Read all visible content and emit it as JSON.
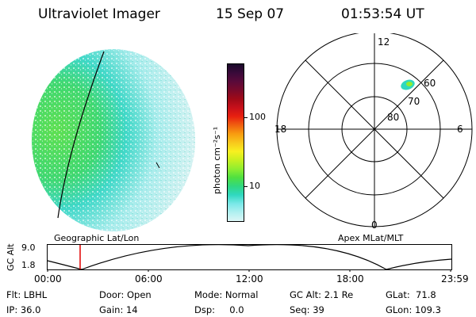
{
  "header": {
    "title": "Ultraviolet Imager",
    "date": "15 Sep 07",
    "time": "01:53:54 UT"
  },
  "colorbar": {
    "unit_label": "photon cm⁻²s⁻¹",
    "ticks": [
      "100",
      "10"
    ],
    "colors": [
      "#1a0a2a",
      "#3a0a3a",
      "#5a0a3a",
      "#7a0a2a",
      "#a00a18",
      "#c8101a",
      "#e82010",
      "#f06010",
      "#f89c10",
      "#f8c81c",
      "#f8f020",
      "#c8f020",
      "#90ee30",
      "#50e040",
      "#30d880",
      "#30d8c0",
      "#7ae8e8",
      "#b0f0f0",
      "#dcf6f6"
    ]
  },
  "disk_image": {
    "label": "Geographic Lat/Lon"
  },
  "polar_plot": {
    "label": "Apex MLat/MLT",
    "mlt_labels": {
      "top": "12",
      "left": "18",
      "right": "6",
      "bottom": "0"
    },
    "lat_labels": [
      "60",
      "70",
      "80"
    ]
  },
  "altitude_plot": {
    "ylabel": "GC Alt",
    "yticks": [
      "9.0",
      "1.8"
    ],
    "xticks": [
      "00:00",
      "06:00",
      "12:00",
      "18:00",
      "23:59"
    ]
  },
  "status": {
    "flt": "Flt: LBHL",
    "ip": "IP: 36.0",
    "door": "Door: Open",
    "gain": "Gain: 14",
    "mode": "Mode: Normal",
    "dsp": "Dsp:     0.0",
    "gc_alt": "GC Alt: 2.1 Re",
    "seq": "Seq: 39",
    "glat": "GLat:  71.8",
    "glon": "GLon: 109.3"
  }
}
